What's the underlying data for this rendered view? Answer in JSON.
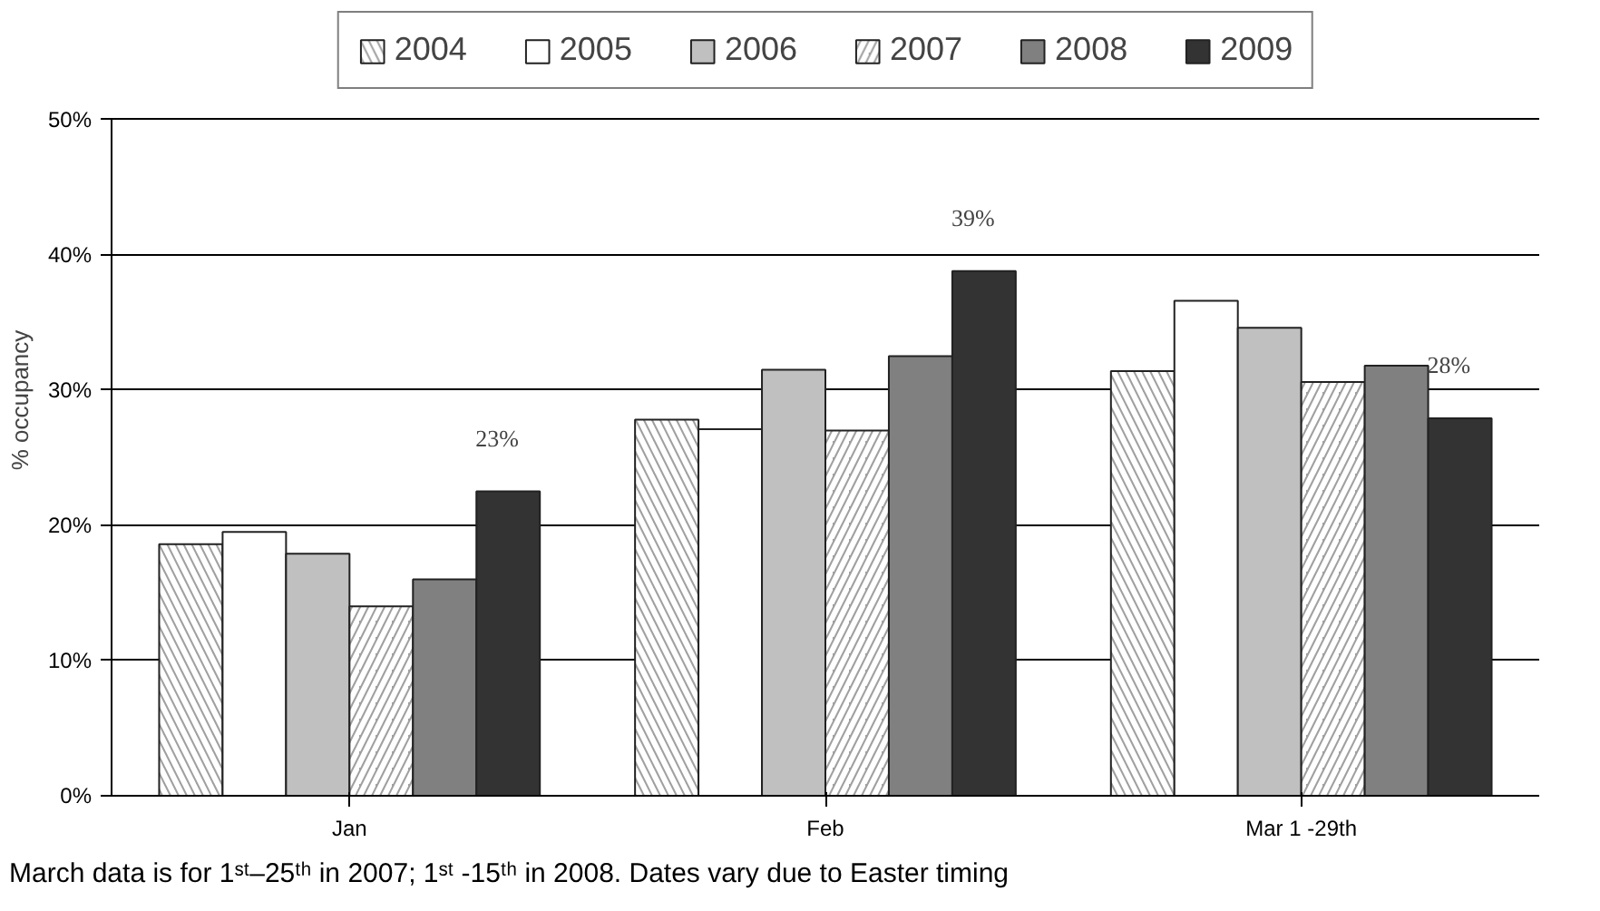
{
  "chart_data": {
    "type": "bar",
    "categories": [
      "Jan",
      "Feb",
      "Mar 1 -29th"
    ],
    "ylabel": "% occupancy",
    "ylim": [
      0,
      50
    ],
    "yticks": [
      {
        "value": 0,
        "label": "0%"
      },
      {
        "value": 10,
        "label": "10%"
      },
      {
        "value": 20,
        "label": "20%"
      },
      {
        "value": 30,
        "label": "30%"
      },
      {
        "value": 40,
        "label": "40%"
      },
      {
        "value": 50,
        "label": "50%"
      }
    ],
    "grid": "y",
    "legend": "top",
    "series": [
      {
        "name": "2004",
        "color": "#a0a0a0",
        "values": [
          18.6,
          27.8,
          31.4
        ]
      },
      {
        "name": "2005",
        "color": "#ffffff",
        "values": [
          19.5,
          27.1,
          36.6
        ]
      },
      {
        "name": "2006",
        "color": "#c0c0c0",
        "values": [
          17.9,
          31.5,
          34.6
        ]
      },
      {
        "name": "2007",
        "color": "#a0a0a0",
        "values": [
          14.0,
          27.0,
          30.6
        ]
      },
      {
        "name": "2008",
        "color": "#808080",
        "values": [
          16.0,
          32.5,
          31.8
        ]
      },
      {
        "name": "2009",
        "color": "#333333",
        "values": [
          22.5,
          38.8,
          27.9
        ],
        "value_labels": [
          "23%",
          "39%",
          "28%"
        ]
      }
    ],
    "annotations": [
      "March data is for 1ˢᵗ–25ᵗʰ in 2007; 1ˢᵗ -15ᵗʰ in 2008.  Dates vary due to Easter timing"
    ]
  }
}
